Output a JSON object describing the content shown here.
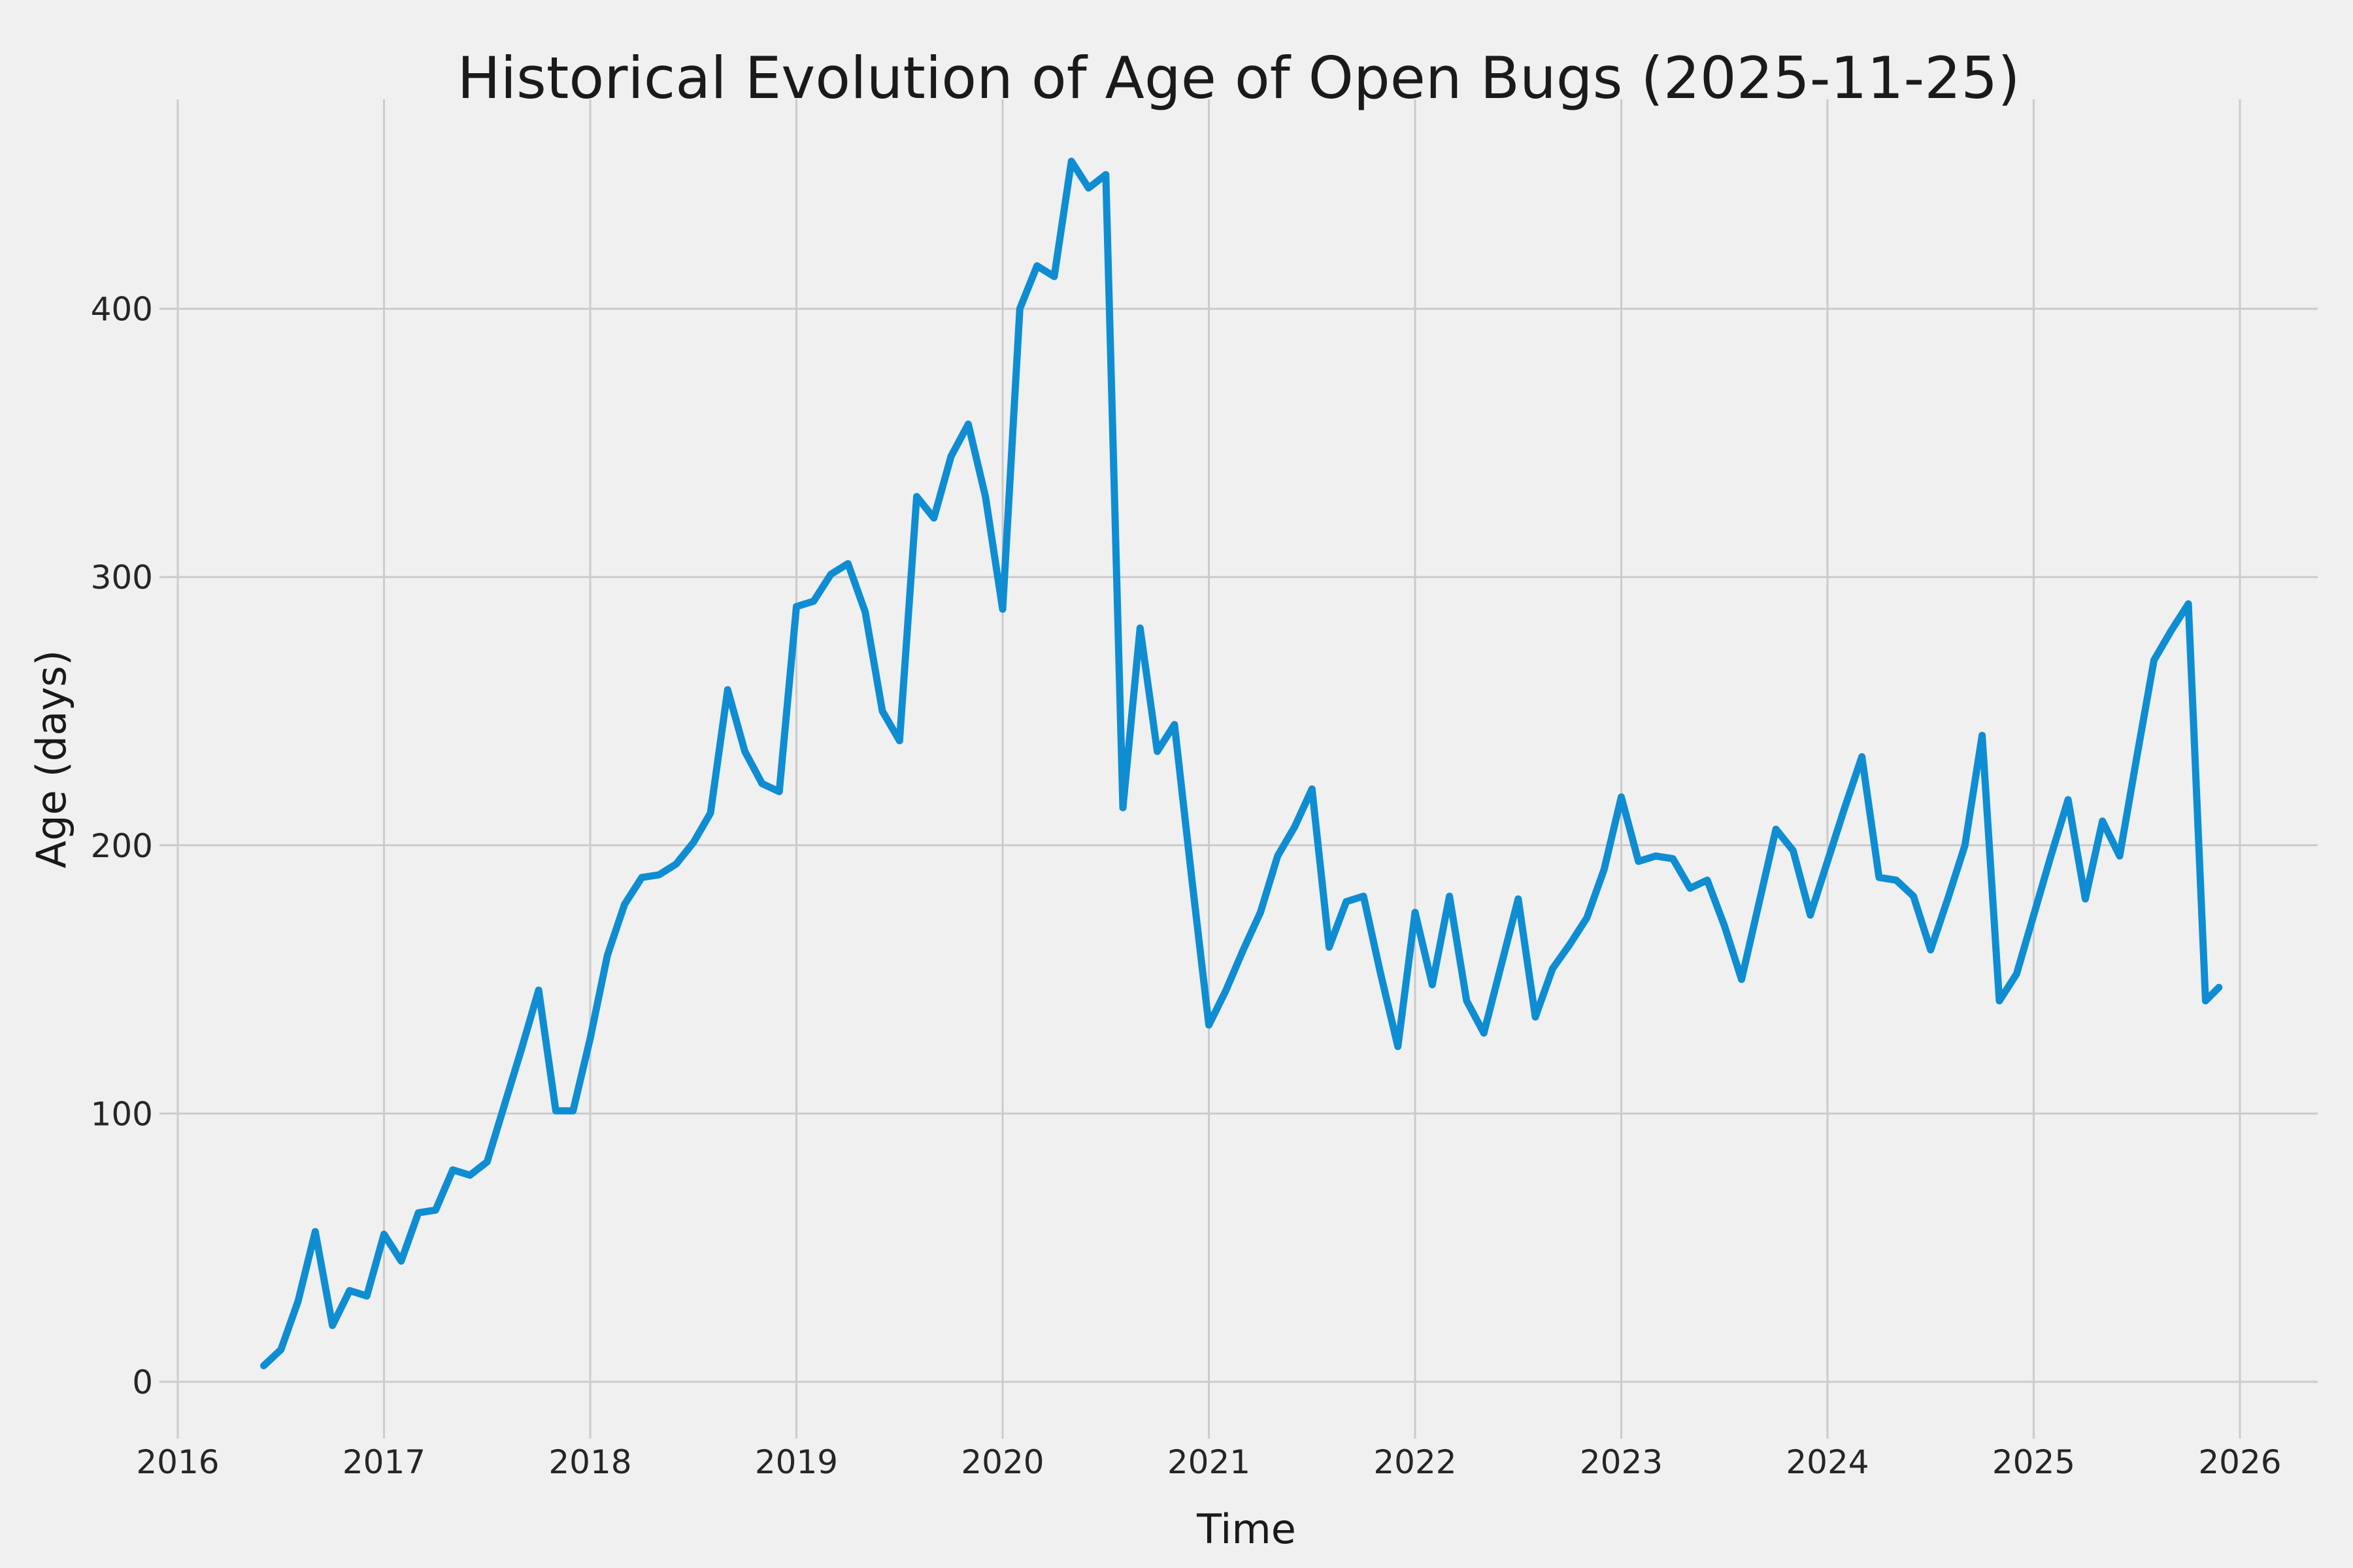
{
  "title": "Historical Evolution of Age of Open Bugs (2025-11-25)",
  "colors": {
    "background": "#f0f0f0",
    "gridline": "#cbcbcb",
    "line": "#0e8dd3",
    "tick_text": "#262626",
    "title_text": "#1a1a1a"
  },
  "chart_data": {
    "type": "line",
    "title": "Historical Evolution of Age of Open Bugs (2025-11-25)",
    "xlabel": "Time",
    "ylabel": "Age (days)",
    "x_tick_labels": [
      "2016",
      "2017",
      "2018",
      "2019",
      "2020",
      "2021",
      "2022",
      "2023",
      "2024",
      "2025",
      "2026"
    ],
    "x_tick_years": [
      2016,
      2017,
      2018,
      2019,
      2020,
      2021,
      2022,
      2023,
      2024,
      2025,
      2026
    ],
    "y_tick_labels": [
      "0",
      "100",
      "200",
      "300",
      "400"
    ],
    "y_ticks": [
      0,
      100,
      200,
      300,
      400
    ],
    "ylim": [
      -17,
      478
    ],
    "xlim": [
      2015.96,
      2026.38
    ],
    "grid": true,
    "legend_position": "none",
    "line_color": "#0e8dd3",
    "series": [
      {
        "name": "age-of-open-bugs",
        "points": [
          [
            "2016-06",
            6
          ],
          [
            "2016-07",
            12
          ],
          [
            "2016-08",
            30
          ],
          [
            "2016-09",
            56
          ],
          [
            "2016-10",
            21
          ],
          [
            "2016-11",
            34
          ],
          [
            "2016-12",
            32
          ],
          [
            "2017-01",
            55
          ],
          [
            "2017-02",
            45
          ],
          [
            "2017-03",
            63
          ],
          [
            "2017-04",
            64
          ],
          [
            "2017-05",
            79
          ],
          [
            "2017-06",
            77
          ],
          [
            "2017-07",
            82
          ],
          [
            "2017-08",
            103
          ],
          [
            "2017-09",
            124
          ],
          [
            "2017-10",
            146
          ],
          [
            "2017-11",
            101
          ],
          [
            "2017-12",
            101
          ],
          [
            "2018-01",
            128
          ],
          [
            "2018-02",
            159
          ],
          [
            "2018-03",
            178
          ],
          [
            "2018-04",
            188
          ],
          [
            "2018-05",
            189
          ],
          [
            "2018-06",
            193
          ],
          [
            "2018-07",
            201
          ],
          [
            "2018-08",
            212
          ],
          [
            "2018-09",
            258
          ],
          [
            "2018-10",
            235
          ],
          [
            "2018-11",
            223
          ],
          [
            "2018-12",
            220
          ],
          [
            "2019-01",
            289
          ],
          [
            "2019-02",
            291
          ],
          [
            "2019-03",
            301
          ],
          [
            "2019-04",
            305
          ],
          [
            "2019-05",
            287
          ],
          [
            "2019-06",
            250
          ],
          [
            "2019-07",
            239
          ],
          [
            "2019-08",
            330
          ],
          [
            "2019-09",
            322
          ],
          [
            "2019-10",
            345
          ],
          [
            "2019-11",
            357
          ],
          [
            "2019-12",
            330
          ],
          [
            "2020-01",
            288
          ],
          [
            "2020-02",
            400
          ],
          [
            "2020-03",
            416
          ],
          [
            "2020-04",
            412
          ],
          [
            "2020-05",
            455
          ],
          [
            "2020-06",
            445
          ],
          [
            "2020-07",
            450
          ],
          [
            "2020-08",
            214
          ],
          [
            "2020-09",
            281
          ],
          [
            "2020-10",
            235
          ],
          [
            "2020-11",
            245
          ],
          [
            "2020-12",
            188
          ],
          [
            "2021-01",
            133
          ],
          [
            "2021-02",
            146
          ],
          [
            "2021-03",
            161
          ],
          [
            "2021-04",
            175
          ],
          [
            "2021-05",
            196
          ],
          [
            "2021-06",
            207
          ],
          [
            "2021-07",
            221
          ],
          [
            "2021-08",
            162
          ],
          [
            "2021-09",
            179
          ],
          [
            "2021-10",
            181
          ],
          [
            "2021-11",
            152
          ],
          [
            "2021-12",
            125
          ],
          [
            "2022-01",
            175
          ],
          [
            "2022-02",
            148
          ],
          [
            "2022-03",
            181
          ],
          [
            "2022-04",
            142
          ],
          [
            "2022-05",
            130
          ],
          [
            "2022-06",
            155
          ],
          [
            "2022-07",
            180
          ],
          [
            "2022-08",
            136
          ],
          [
            "2022-09",
            154
          ],
          [
            "2022-10",
            163
          ],
          [
            "2022-11",
            173
          ],
          [
            "2022-12",
            191
          ],
          [
            "2023-01",
            218
          ],
          [
            "2023-02",
            194
          ],
          [
            "2023-03",
            196
          ],
          [
            "2023-04",
            195
          ],
          [
            "2023-05",
            184
          ],
          [
            "2023-06",
            187
          ],
          [
            "2023-07",
            170
          ],
          [
            "2023-08",
            150
          ],
          [
            "2023-09",
            178
          ],
          [
            "2023-10",
            206
          ],
          [
            "2023-11",
            198
          ],
          [
            "2023-12",
            174
          ],
          [
            "2024-01",
            194
          ],
          [
            "2024-02",
            214
          ],
          [
            "2024-03",
            233
          ],
          [
            "2024-04",
            188
          ],
          [
            "2024-05",
            187
          ],
          [
            "2024-06",
            181
          ],
          [
            "2024-07",
            161
          ],
          [
            "2024-08",
            180
          ],
          [
            "2024-09",
            200
          ],
          [
            "2024-10",
            241
          ],
          [
            "2024-11",
            142
          ],
          [
            "2024-12",
            152
          ],
          [
            "2025-01",
            174
          ],
          [
            "2025-02",
            196
          ],
          [
            "2025-03",
            217
          ],
          [
            "2025-04",
            180
          ],
          [
            "2025-05",
            209
          ],
          [
            "2025-06",
            196
          ],
          [
            "2025-07",
            233
          ],
          [
            "2025-08",
            269
          ],
          [
            "2025-09",
            280
          ],
          [
            "2025-10",
            290
          ],
          [
            "2025-11",
            142
          ],
          [
            "2025-11-25",
            147
          ]
        ]
      }
    ]
  }
}
